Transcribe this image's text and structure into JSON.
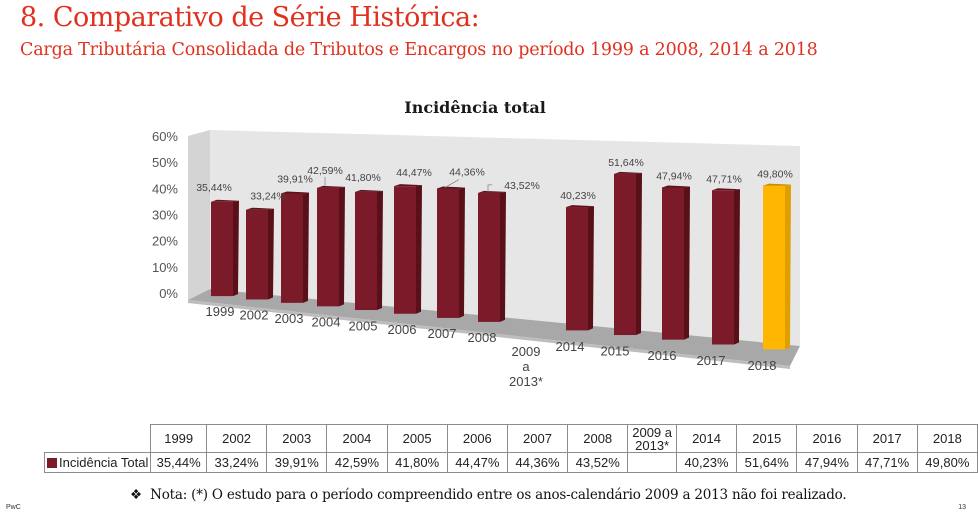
{
  "header": {
    "title": "8. Comparativo de Série Histórica:",
    "subtitle": "Carga Tributária Consolidada de Tributos e Encargos no período 1999 a 2008, 2014 a 2018"
  },
  "chart_data": {
    "type": "bar",
    "title": "Incidência total",
    "xlabel": "",
    "ylabel": "",
    "ylim": [
      0,
      60
    ],
    "yticks": [
      "0%",
      "10%",
      "20%",
      "30%",
      "40%",
      "50%",
      "60%"
    ],
    "grid": false,
    "legend": "in-table",
    "categories": [
      "1999",
      "2002",
      "2003",
      "2004",
      "2005",
      "2006",
      "2007",
      "2008",
      "2009 a 2013*",
      "2014",
      "2015",
      "2016",
      "2017",
      "2018"
    ],
    "series": [
      {
        "name": "Incidência Total",
        "color": "#7b1a28",
        "highlight_color": "#ffb600",
        "highlight_category": "2018",
        "values": [
          35.44,
          33.24,
          39.91,
          42.59,
          41.8,
          44.47,
          44.36,
          43.52,
          null,
          40.23,
          51.64,
          47.94,
          47.71,
          49.8
        ],
        "labels": [
          "35,44%",
          "33,24%",
          "39,91%",
          "42,59%",
          "41,80%",
          "44,47%",
          "44,36%",
          "43,52%",
          "",
          "40,23%",
          "51,64%",
          "47,94%",
          "47,71%",
          "49,80%"
        ]
      }
    ]
  },
  "table": {
    "headers": [
      "1999",
      "2002",
      "2003",
      "2004",
      "2005",
      "2006",
      "2007",
      "2008",
      "2009 a 2013*",
      "2014",
      "2015",
      "2016",
      "2017",
      "2018"
    ],
    "row_label": "Incidência Total",
    "values": [
      "35,44%",
      "33,24%",
      "39,91%",
      "42,59%",
      "41,80%",
      "44,47%",
      "44,36%",
      "43,52%",
      "",
      "40,23%",
      "51,64%",
      "47,94%",
      "47,71%",
      "49,80%"
    ]
  },
  "note": "Nota: (*) O estudo para o período compreendido entre os anos-calendário 2009 a 2013 não foi realizado.",
  "note_bullet": "❖",
  "footer": {
    "left": "PwC",
    "page_number": "13"
  }
}
